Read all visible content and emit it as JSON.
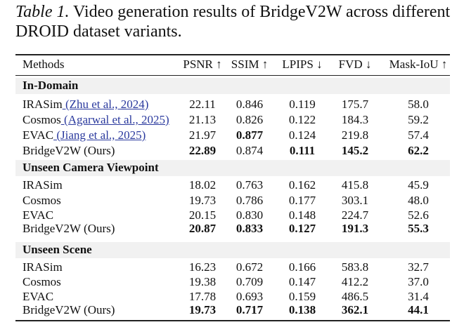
{
  "caption": {
    "label": "Table 1.",
    "line1": " Video generation results of BridgeV2W across different",
    "line2": "DROID dataset variants."
  },
  "table": {
    "headers": [
      "Methods",
      "PSNR ↑",
      "SSIM ↑",
      "LPIPS ↓",
      "FVD ↓",
      "Mask-IoU ↑"
    ],
    "groups": [
      {
        "title": "In-Domain",
        "rows": [
          {
            "method": "IRASim",
            "citation": " (Zhu et al., 2024)",
            "values": [
              "22.11",
              "0.846",
              "0.119",
              "175.7",
              "58.0"
            ],
            "bold": [
              false,
              false,
              false,
              false,
              false
            ]
          },
          {
            "method": "Cosmos",
            "citation": " (Agarwal et al., 2025)",
            "values": [
              "21.13",
              "0.826",
              "0.122",
              "184.3",
              "59.2"
            ],
            "bold": [
              false,
              false,
              false,
              false,
              false
            ]
          },
          {
            "method": "EVAC",
            "citation": " (Jiang et al., 2025)",
            "values": [
              "21.97",
              "0.877",
              "0.124",
              "219.8",
              "57.4"
            ],
            "bold": [
              false,
              true,
              false,
              false,
              false
            ]
          },
          {
            "method": "BridgeV2W (Ours)",
            "citation": "",
            "values": [
              "22.89",
              "0.874",
              "0.111",
              "145.2",
              "62.2"
            ],
            "bold": [
              true,
              false,
              true,
              true,
              true
            ]
          }
        ]
      },
      {
        "title": "Unseen Camera Viewpoint",
        "rows": [
          {
            "method": "IRASim",
            "citation": "",
            "values": [
              "18.02",
              "0.763",
              "0.162",
              "415.8",
              "45.9"
            ],
            "bold": [
              false,
              false,
              false,
              false,
              false
            ]
          },
          {
            "method": "Cosmos",
            "citation": "",
            "values": [
              "19.73",
              "0.786",
              "0.177",
              "303.1",
              "48.0"
            ],
            "bold": [
              false,
              false,
              false,
              false,
              false
            ]
          },
          {
            "method": "EVAC",
            "citation": "",
            "values": [
              "20.15",
              "0.830",
              "0.148",
              "224.7",
              "52.6"
            ],
            "bold": [
              false,
              false,
              false,
              false,
              false
            ]
          },
          {
            "method": "BridgeV2W (Ours)",
            "citation": "",
            "values": [
              "20.87",
              "0.833",
              "0.127",
              "191.3",
              "55.3"
            ],
            "bold": [
              true,
              true,
              true,
              true,
              true
            ]
          }
        ]
      },
      {
        "title": "Unseen Scene",
        "rows": [
          {
            "method": "IRASim",
            "citation": "",
            "values": [
              "16.23",
              "0.672",
              "0.166",
              "583.8",
              "32.7"
            ],
            "bold": [
              false,
              false,
              false,
              false,
              false
            ]
          },
          {
            "method": "Cosmos",
            "citation": "",
            "values": [
              "19.38",
              "0.709",
              "0.147",
              "412.2",
              "37.0"
            ],
            "bold": [
              false,
              false,
              false,
              false,
              false
            ]
          },
          {
            "method": "EVAC",
            "citation": "",
            "values": [
              "17.78",
              "0.693",
              "0.159",
              "486.5",
              "31.4"
            ],
            "bold": [
              false,
              false,
              false,
              false,
              false
            ]
          },
          {
            "method": "BridgeV2W (Ours)",
            "citation": "",
            "values": [
              "19.73",
              "0.717",
              "0.138",
              "362.1",
              "44.1"
            ],
            "bold": [
              true,
              true,
              true,
              true,
              true
            ]
          }
        ]
      }
    ]
  },
  "colors": {
    "citation": "#2b3a9e",
    "group_band": "#f1f1f1"
  }
}
